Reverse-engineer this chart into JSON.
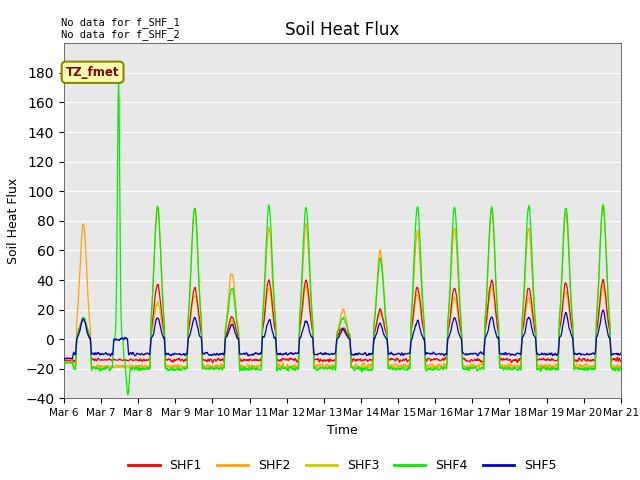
{
  "title": "Soil Heat Flux",
  "ylabel": "Soil Heat Flux",
  "xlabel": "Time",
  "text_top_left": "No data for f_SHF_1\nNo data for f_SHF_2",
  "annotation_label": "TZ_fmet",
  "ylim": [
    -40,
    200
  ],
  "yticks": [
    -40,
    -20,
    0,
    20,
    40,
    60,
    80,
    100,
    120,
    140,
    160,
    180
  ],
  "colors": {
    "SHF1": "#ff0000",
    "SHF2": "#ffa500",
    "SHF3": "#cccc00",
    "SHF4": "#00ee00",
    "SHF5": "#0000cc"
  },
  "background_color": "#e8e8e8",
  "n_days": 15,
  "ppd": 96,
  "xtick_labels": [
    "Mar 6",
    "Mar 7",
    "Mar 8",
    "Mar 9",
    "Mar 10",
    "Mar 11",
    "Mar 12",
    "Mar 13",
    "Mar 14",
    "Mar 15",
    "Mar 16",
    "Mar 17",
    "Mar 18",
    "Mar 19",
    "Mar 20",
    "Mar 21"
  ]
}
